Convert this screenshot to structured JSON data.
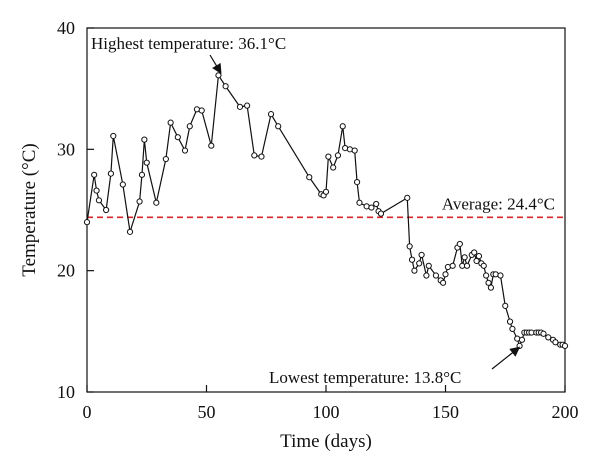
{
  "chart_data": {
    "type": "line",
    "xlabel": "Time (days)",
    "ylabel": "Temperature (°C)",
    "xlim": [
      0,
      200
    ],
    "ylim": [
      10,
      40
    ],
    "x_ticks": [
      "0",
      "50",
      "100",
      "150",
      "200"
    ],
    "y_ticks": [
      "10",
      "20",
      "30",
      "40"
    ],
    "grid": false,
    "legend": "none",
    "colors": {
      "series": "#111111",
      "average_line": "#d62728"
    },
    "series": [
      {
        "x": [
          0,
          3,
          4,
          5,
          8,
          10,
          11,
          15,
          18,
          22,
          23,
          24,
          25,
          29,
          33,
          35,
          38,
          41,
          43,
          46,
          48,
          52,
          55,
          58,
          64,
          67,
          70,
          73,
          77,
          80,
          93,
          98,
          99,
          100,
          101,
          103,
          105,
          107,
          108,
          110,
          112,
          113,
          114,
          117,
          119,
          121,
          122,
          123,
          134,
          135,
          136,
          137,
          139,
          140,
          142,
          143,
          146,
          148,
          149,
          150,
          151,
          153,
          155,
          156,
          157,
          158,
          159,
          161,
          162,
          163,
          164,
          165,
          166,
          167,
          168,
          169,
          170,
          171,
          173,
          175,
          177,
          178,
          180,
          181,
          182,
          183,
          184,
          185,
          186,
          188,
          189,
          190,
          191,
          193,
          195,
          196,
          198,
          199,
          200
        ],
        "y": [
          24.0,
          27.9,
          26.6,
          25.8,
          25.0,
          28.0,
          31.1,
          27.1,
          23.2,
          25.7,
          27.9,
          30.8,
          28.9,
          25.6,
          29.2,
          32.2,
          31.0,
          29.9,
          31.9,
          33.3,
          33.2,
          30.3,
          36.1,
          35.2,
          33.5,
          33.6,
          29.5,
          29.4,
          32.9,
          31.9,
          27.7,
          26.3,
          26.2,
          26.5,
          29.4,
          28.5,
          29.5,
          31.9,
          30.1,
          30.0,
          29.9,
          27.3,
          25.6,
          25.3,
          25.2,
          25.5,
          24.9,
          24.7,
          26.0,
          22.0,
          20.9,
          20.0,
          20.6,
          21.3,
          19.6,
          20.4,
          19.6,
          19.2,
          19.0,
          19.7,
          20.3,
          20.4,
          21.9,
          22.2,
          20.4,
          21.1,
          20.4,
          21.3,
          21.5,
          20.8,
          21.2,
          20.6,
          20.4,
          19.6,
          19.0,
          18.6,
          19.7,
          19.7,
          19.6,
          17.1,
          15.8,
          15.2,
          14.4,
          13.8,
          14.3,
          14.9,
          14.9,
          14.9,
          14.9,
          14.9,
          14.9,
          14.9,
          14.8,
          14.5,
          14.3,
          14.1,
          13.9,
          13.9,
          13.8
        ]
      }
    ],
    "reference_lines": [
      {
        "y": 24.4,
        "label": "Average: 24.4°C"
      }
    ],
    "annotations": [
      {
        "label": "Highest temperature: 36.1°C",
        "x": 55,
        "y": 36.1
      },
      {
        "label": "Lowest temperature: 13.8°C",
        "x": 181,
        "y": 13.8
      }
    ]
  }
}
